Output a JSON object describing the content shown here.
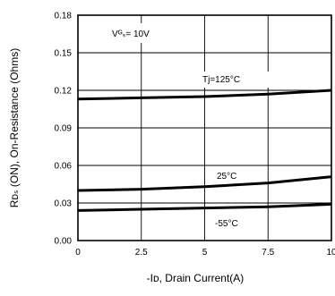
{
  "chart_data": {
    "type": "line",
    "xlabel": "-Iᴅ, Drain Current(A)",
    "ylabel": "Rᴅₛ (ON), On-Resistance (Ohms)",
    "xlim": [
      0,
      10
    ],
    "ylim": [
      0,
      0.18
    ],
    "x_ticks": [
      "0",
      "2.5",
      "5",
      "7.5",
      "10"
    ],
    "y_ticks": [
      "0.00",
      "0.03",
      "0.06",
      "0.09",
      "0.12",
      "0.15",
      "0.18"
    ],
    "grid": true,
    "condition_label": "Vᴳₛ= 10V",
    "series": [
      {
        "name": "Tj=125°C",
        "x": [
          0,
          2.5,
          5,
          7.5,
          10
        ],
        "y": [
          0.113,
          0.114,
          0.115,
          0.117,
          0.12
        ]
      },
      {
        "name": "25°C",
        "x": [
          0,
          2.5,
          5,
          7.5,
          10
        ],
        "y": [
          0.04,
          0.041,
          0.043,
          0.046,
          0.051
        ]
      },
      {
        "name": "-55°C",
        "x": [
          0,
          2.5,
          5,
          7.5,
          10
        ],
        "y": [
          0.024,
          0.025,
          0.026,
          0.027,
          0.029
        ]
      }
    ]
  }
}
